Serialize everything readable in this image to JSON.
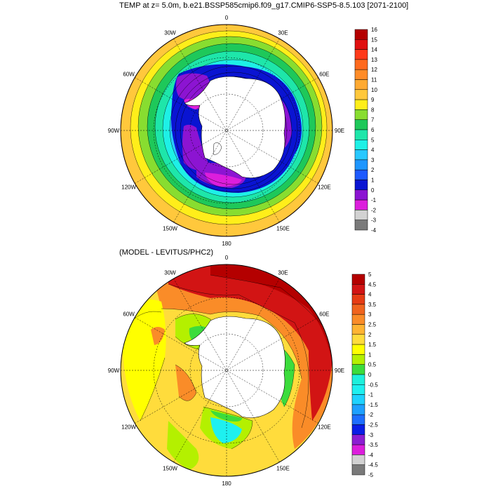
{
  "title_top": "TEMP at z=   5.0m, b.e21.BSSP585cmip6.f09_g17.CMIP6-SSP5-8.5.103 [2071-2100]",
  "title_bottom": "(MODEL - LEVITUS/PHC2)",
  "longitude_labels": [
    "0",
    "30E",
    "60E",
    "90E",
    "120E",
    "150E",
    "180",
    "150W",
    "120W",
    "90W",
    "60W",
    "30W"
  ],
  "colorbar_top": {
    "labels": [
      "16",
      "15",
      "14",
      "13",
      "12",
      "11",
      "10",
      "9",
      "8",
      "7",
      "6",
      "5",
      "4",
      "3",
      "2",
      "1",
      "0",
      "-1",
      "-2",
      "-3",
      "-4"
    ],
    "colors": [
      "#b40000",
      "#e01010",
      "#ff3a1a",
      "#ff6a1e",
      "#ff8c28",
      "#ffaa32",
      "#ffc83c",
      "#ffee1a",
      "#88dd30",
      "#1ec85a",
      "#1ee6aa",
      "#1ef0e6",
      "#28c8ff",
      "#1e96ff",
      "#1e5aff",
      "#0a14d2",
      "#8c14d2",
      "#dc1edc",
      "#d2d2d2",
      "#7a7a7a"
    ]
  },
  "colorbar_bottom": {
    "labels": [
      "5",
      "4.5",
      "4",
      "3.5",
      "3",
      "2.5",
      "2",
      "1.5",
      "1",
      "0.5",
      "0",
      "-0.5",
      "-1",
      "-1.5",
      "-2",
      "-2.5",
      "-3",
      "-3.5",
      "-4",
      "-4.5",
      "-5"
    ],
    "colors": [
      "#b40000",
      "#d21414",
      "#e63c14",
      "#f0641e",
      "#fa8c28",
      "#ffb432",
      "#ffdc3c",
      "#ffff00",
      "#b4f000",
      "#3cdc3c",
      "#1ef0dc",
      "#1ef0f0",
      "#1ed2ff",
      "#1ea0ff",
      "#1e6eff",
      "#0a1ee6",
      "#8c1ed2",
      "#dc1edc",
      "#d2d2d2",
      "#7a7a7a"
    ]
  }
}
